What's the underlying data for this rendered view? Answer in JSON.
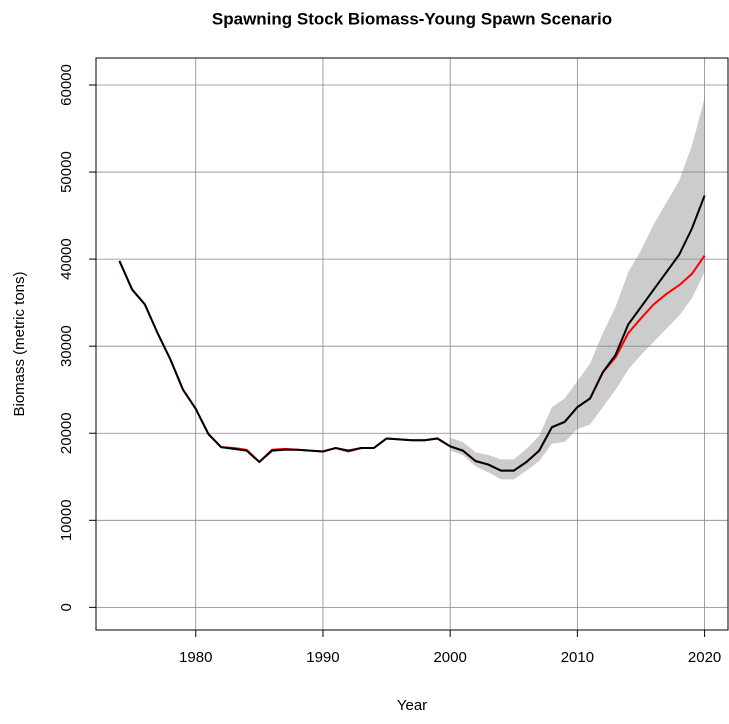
{
  "chart_data": {
    "type": "line",
    "title": "Spawning Stock Biomass-Young Spawn Scenario",
    "x_label": "Year",
    "y_label": "Biomass (metric tons)",
    "x": [
      1974,
      1975,
      1976,
      1977,
      1978,
      1979,
      1980,
      1981,
      1982,
      1983,
      1984,
      1985,
      1986,
      1987,
      1988,
      1989,
      1990,
      1991,
      1992,
      1993,
      1994,
      1995,
      1996,
      1997,
      1998,
      1999,
      2000,
      2001,
      2002,
      2003,
      2004,
      2005,
      2006,
      2007,
      2008,
      2009,
      2010,
      2011,
      2012,
      2013,
      2014,
      2015,
      2016,
      2017,
      2018,
      2019,
      2020
    ],
    "series": [
      {
        "color": "#ff0000",
        "values": [
          39800,
          36500,
          34800,
          31500,
          28500,
          25000,
          22800,
          19900,
          18400,
          18300,
          18100,
          16700,
          18100,
          18200,
          18100,
          18000,
          17900,
          18300,
          17900,
          18300,
          18300,
          19400,
          19300,
          19200,
          19200,
          19400,
          18500,
          18000,
          16800,
          16400,
          15700,
          15700,
          16700,
          18000,
          20700,
          21300,
          23000,
          24000,
          27000,
          28700,
          31500,
          33200,
          34800,
          36000,
          37000,
          38300,
          40400
        ]
      },
      {
        "color": "#000000",
        "values": [
          39800,
          36500,
          34800,
          31500,
          28500,
          25000,
          22800,
          19900,
          18400,
          18200,
          18000,
          16700,
          18000,
          18100,
          18100,
          18000,
          17900,
          18300,
          18000,
          18300,
          18300,
          19400,
          19300,
          19200,
          19200,
          19400,
          18500,
          18000,
          16800,
          16400,
          15700,
          15700,
          16700,
          18000,
          20700,
          21300,
          23000,
          24000,
          27000,
          29000,
          32500,
          34500,
          36500,
          38500,
          40500,
          43500,
          47300
        ]
      }
    ],
    "band": {
      "color": "#cccccc",
      "x": [
        2000,
        2001,
        2002,
        2003,
        2004,
        2005,
        2006,
        2007,
        2008,
        2009,
        2010,
        2011,
        2012,
        2013,
        2014,
        2015,
        2016,
        2017,
        2018,
        2019,
        2020
      ],
      "lower": [
        18000,
        17500,
        16200,
        15500,
        14700,
        14700,
        15700,
        16800,
        18800,
        19000,
        20500,
        21000,
        23000,
        25000,
        27300,
        29000,
        30500,
        32000,
        33500,
        35500,
        38500
      ],
      "upper": [
        19500,
        19000,
        17800,
        17500,
        17000,
        17000,
        18200,
        19700,
        23000,
        24000,
        26000,
        28000,
        31500,
        34500,
        38500,
        41000,
        44000,
        46500,
        49000,
        53000,
        58500
      ]
    },
    "xlim": [
      1972.16,
      2021.84
    ],
    "ylim": [
      -2600,
      63100
    ],
    "xticks": [
      1980,
      1990,
      2000,
      2010,
      2020
    ],
    "yticks": [
      0,
      10000,
      20000,
      30000,
      40000,
      50000,
      60000
    ],
    "grid": true
  }
}
